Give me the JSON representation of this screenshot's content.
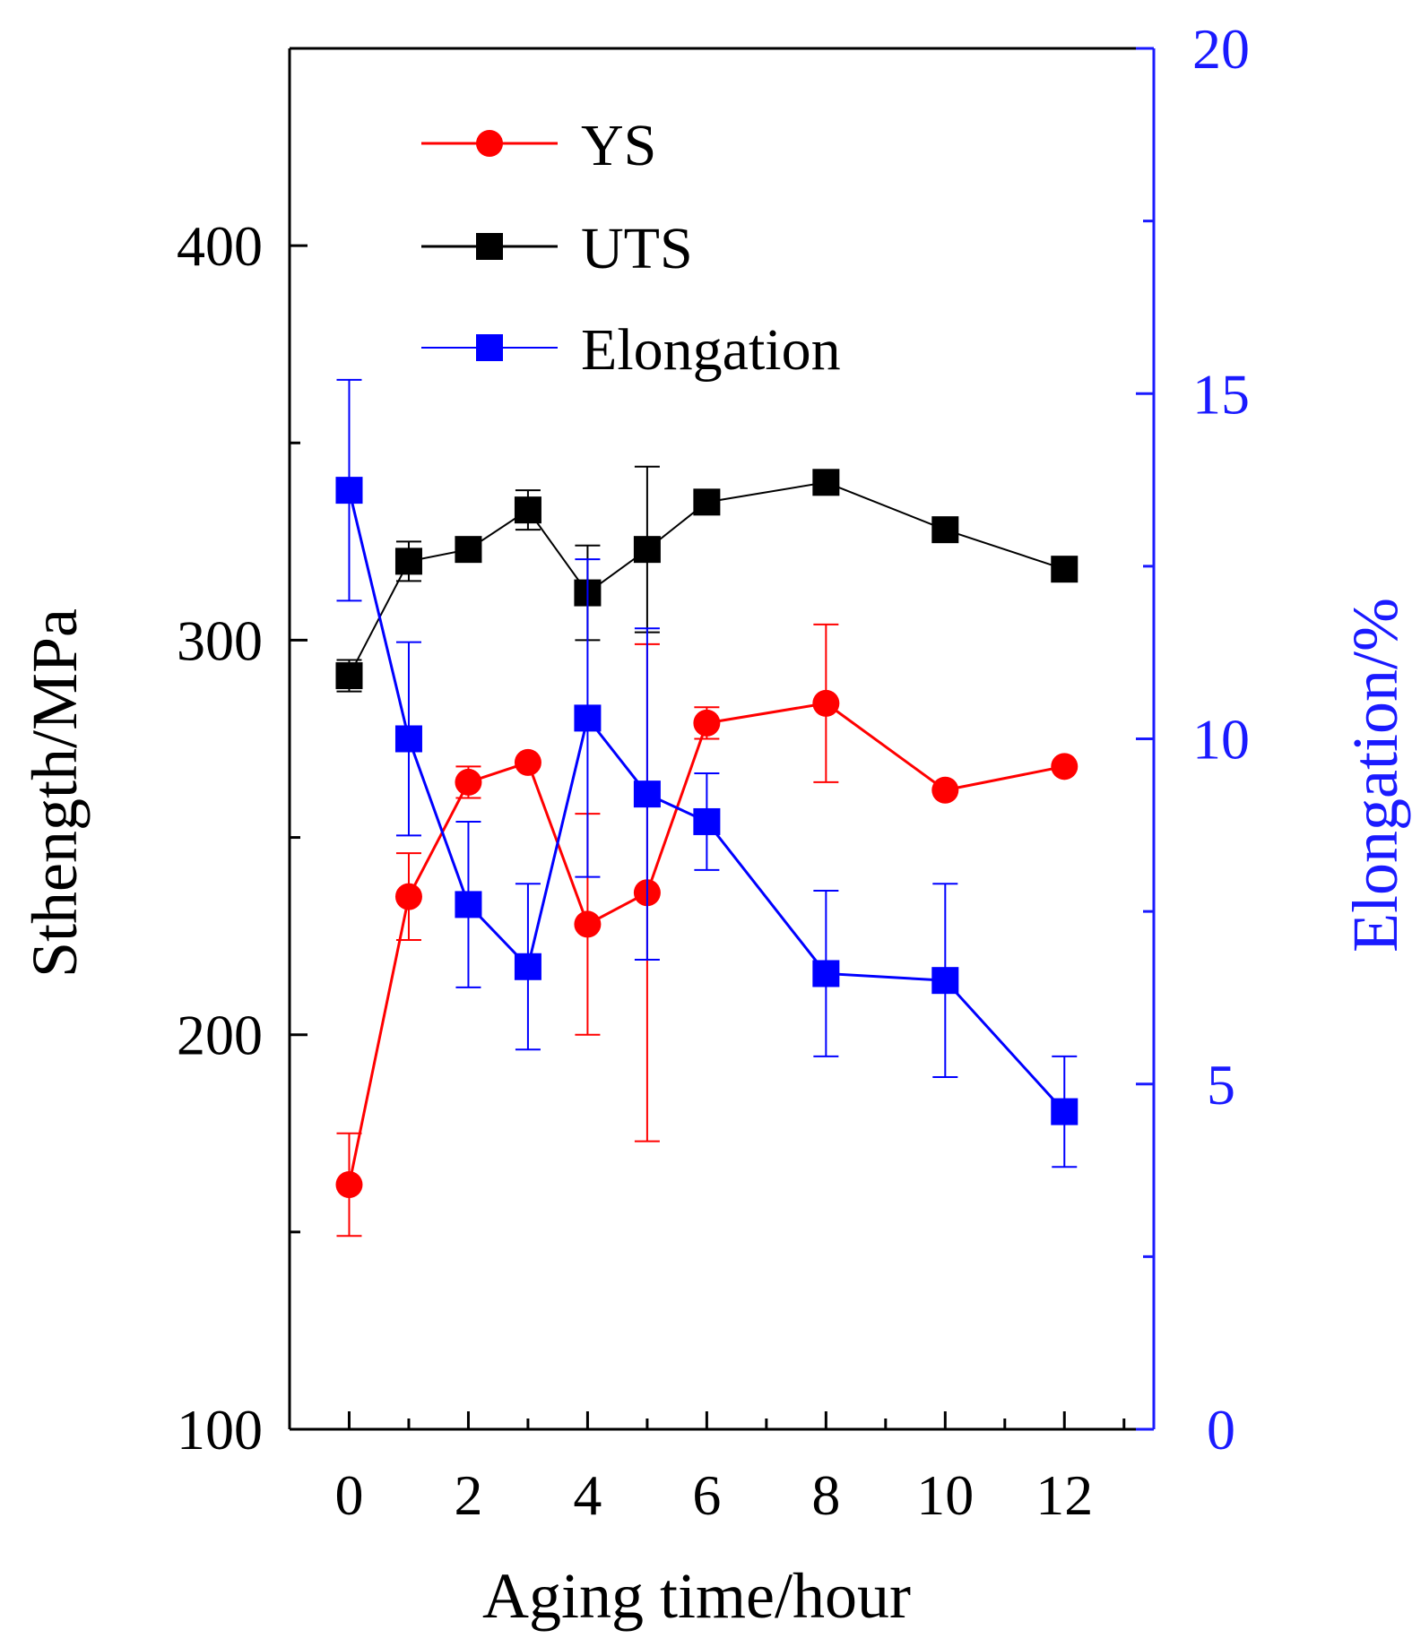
{
  "chart_data": {
    "type": "line",
    "xlabel": "Aging time/hour",
    "ylabel_left": "Sthength/MPa",
    "ylabel_right": "Elongation/%",
    "xlim": [
      -1,
      13.5
    ],
    "ylim_left": [
      100,
      450
    ],
    "ylim_right": [
      0,
      20
    ],
    "x_ticks": [
      0,
      2,
      4,
      6,
      8,
      10,
      12
    ],
    "y_left_ticks": [
      100,
      200,
      300,
      400
    ],
    "y_right_ticks": [
      0,
      5,
      10,
      15,
      20
    ],
    "grid": false,
    "legend_position": "top-left",
    "series": [
      {
        "name": "YS",
        "axis": "left",
        "color": "#ff0000",
        "marker": "circle",
        "x": [
          0,
          1,
          2,
          3,
          4,
          5,
          6,
          8,
          10,
          12
        ],
        "y": [
          162,
          235,
          264,
          269,
          228,
          236,
          279,
          284,
          262,
          268
        ],
        "err": [
          13,
          11,
          4,
          0,
          28,
          63,
          4,
          20,
          0,
          0
        ]
      },
      {
        "name": "UTS",
        "axis": "left",
        "color": "#000000",
        "marker": "square",
        "x": [
          0,
          1,
          2,
          3,
          4,
          5,
          6,
          8,
          10,
          12
        ],
        "y": [
          291,
          320,
          323,
          333,
          312,
          323,
          335,
          340,
          328,
          318
        ],
        "err": [
          4,
          5,
          0,
          5,
          12,
          21,
          3,
          3,
          0,
          0
        ]
      },
      {
        "name": "Elongation",
        "axis": "right",
        "color": "#0000ff",
        "marker": "square",
        "x": [
          0,
          1,
          2,
          3,
          4,
          5,
          6,
          8,
          10,
          12
        ],
        "y": [
          13.6,
          10.0,
          7.6,
          6.7,
          10.3,
          9.2,
          8.8,
          6.6,
          6.5,
          4.6
        ],
        "err": [
          1.6,
          1.4,
          1.2,
          1.2,
          2.3,
          2.4,
          0.7,
          1.2,
          1.4,
          0.8
        ]
      }
    ]
  }
}
